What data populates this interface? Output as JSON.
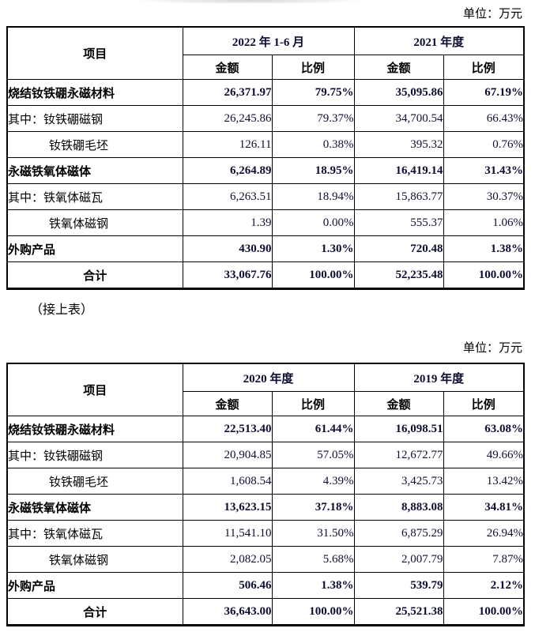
{
  "page": {
    "unit_label": "单位：万元",
    "continuation_note": "（接上表）"
  },
  "tables": [
    {
      "header": {
        "item_label": "项目",
        "periods": [
          "2022 年 1-6 月",
          "2021 年度"
        ],
        "sub_headers": [
          "金额",
          "比例",
          "金额",
          "比例"
        ]
      },
      "rows": [
        {
          "label": "烧结钕铁硼永磁材料",
          "bold": true,
          "indent": 0,
          "center": false,
          "values": [
            "26,371.97",
            "79.75%",
            "35,095.86",
            "67.19%"
          ]
        },
        {
          "label": "其中：钕铁硼磁钢",
          "bold": false,
          "indent": 0,
          "center": false,
          "values": [
            "26,245.86",
            "79.37%",
            "34,700.54",
            "66.43%"
          ]
        },
        {
          "label": "钕铁硼毛坯",
          "bold": false,
          "indent": 1,
          "center": false,
          "values": [
            "126.11",
            "0.38%",
            "395.32",
            "0.76%"
          ]
        },
        {
          "label": "永磁铁氧体磁体",
          "bold": true,
          "indent": 0,
          "center": false,
          "values": [
            "6,264.89",
            "18.95%",
            "16,419.14",
            "31.43%"
          ]
        },
        {
          "label": "其中：铁氧体磁瓦",
          "bold": false,
          "indent": 0,
          "center": false,
          "values": [
            "6,263.51",
            "18.94%",
            "15,863.77",
            "30.37%"
          ]
        },
        {
          "label": "铁氧体磁钢",
          "bold": false,
          "indent": 1,
          "center": false,
          "values": [
            "1.39",
            "0.00%",
            "555.37",
            "1.06%"
          ]
        },
        {
          "label": "外购产品",
          "bold": true,
          "indent": 0,
          "center": false,
          "values": [
            "430.90",
            "1.30%",
            "720.48",
            "1.38%"
          ]
        },
        {
          "label": "合计",
          "bold": true,
          "indent": 0,
          "center": true,
          "values": [
            "33,067.76",
            "100.00%",
            "52,235.48",
            "100.00%"
          ]
        }
      ]
    },
    {
      "header": {
        "item_label": "项目",
        "periods": [
          "2020 年度",
          "2019 年度"
        ],
        "sub_headers": [
          "金额",
          "比例",
          "金额",
          "比例"
        ]
      },
      "rows": [
        {
          "label": "烧结钕铁硼永磁材料",
          "bold": true,
          "indent": 0,
          "center": false,
          "values": [
            "22,513.40",
            "61.44%",
            "16,098.51",
            "63.08%"
          ]
        },
        {
          "label": "其中：钕铁硼磁钢",
          "bold": false,
          "indent": 0,
          "center": false,
          "values": [
            "20,904.85",
            "57.05%",
            "12,672.77",
            "49.66%"
          ]
        },
        {
          "label": "钕铁硼毛坯",
          "bold": false,
          "indent": 1,
          "center": false,
          "values": [
            "1,608.54",
            "4.39%",
            "3,425.73",
            "13.42%"
          ]
        },
        {
          "label": "永磁铁氧体磁体",
          "bold": true,
          "indent": 0,
          "center": false,
          "values": [
            "13,623.15",
            "37.18%",
            "8,883.08",
            "34.81%"
          ]
        },
        {
          "label": "其中：铁氧体磁瓦",
          "bold": false,
          "indent": 0,
          "center": false,
          "values": [
            "11,541.10",
            "31.50%",
            "6,875.29",
            "26.94%"
          ]
        },
        {
          "label": "铁氧体磁钢",
          "bold": false,
          "indent": 1,
          "center": false,
          "values": [
            "2,082.05",
            "5.68%",
            "2,007.79",
            "7.87%"
          ]
        },
        {
          "label": "外购产品",
          "bold": true,
          "indent": 0,
          "center": false,
          "values": [
            "506.46",
            "1.38%",
            "539.79",
            "2.12%"
          ]
        },
        {
          "label": "合计",
          "bold": true,
          "indent": 0,
          "center": true,
          "values": [
            "36,643.00",
            "100.00%",
            "25,521.38",
            "100.00%"
          ]
        }
      ]
    }
  ],
  "colors": {
    "text": "#000000",
    "number_text": "#0e0e34",
    "border": "#000000",
    "background": "#ffffff"
  }
}
